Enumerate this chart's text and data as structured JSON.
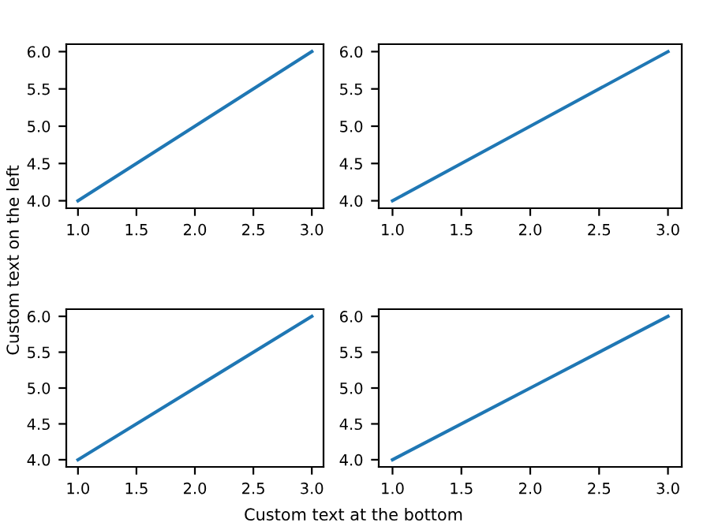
{
  "chart_data": [
    {
      "type": "line",
      "x": [
        1,
        2,
        3
      ],
      "series": [
        {
          "color": "#1f77b4",
          "values": [
            4,
            5,
            6
          ]
        }
      ],
      "xlim": [
        0.9,
        3.1
      ],
      "ylim": [
        3.9,
        6.1
      ],
      "xticks": [
        {
          "value": 1,
          "label": "1.0"
        },
        {
          "value": 1.5,
          "label": "1.5"
        },
        {
          "value": 2,
          "label": "2.0"
        },
        {
          "value": 2.5,
          "label": "2.5"
        },
        {
          "value": 3,
          "label": "3.0"
        }
      ],
      "yticks": [
        {
          "value": 4,
          "label": "4.0"
        },
        {
          "value": 4.5,
          "label": "4.5"
        },
        {
          "value": 5,
          "label": "5.0"
        },
        {
          "value": 5.5,
          "label": "5.5"
        },
        {
          "value": 6,
          "label": "6.0"
        }
      ]
    },
    {
      "type": "line",
      "x": [
        1,
        2,
        3
      ],
      "series": [
        {
          "color": "#1f77b4",
          "values": [
            4,
            5,
            6
          ]
        }
      ],
      "xlim": [
        0.9,
        3.1
      ],
      "ylim": [
        3.9,
        6.1
      ],
      "xticks": [
        {
          "value": 1,
          "label": "1.0"
        },
        {
          "value": 1.5,
          "label": "1.5"
        },
        {
          "value": 2,
          "label": "2.0"
        },
        {
          "value": 2.5,
          "label": "2.5"
        },
        {
          "value": 3,
          "label": "3.0"
        }
      ],
      "yticks": [
        {
          "value": 4,
          "label": "4.0"
        },
        {
          "value": 4.5,
          "label": "4.5"
        },
        {
          "value": 5,
          "label": "5.0"
        },
        {
          "value": 5.5,
          "label": "5.5"
        },
        {
          "value": 6,
          "label": "6.0"
        }
      ]
    },
    {
      "type": "line",
      "x": [
        1,
        2,
        3
      ],
      "series": [
        {
          "color": "#1f77b4",
          "values": [
            4,
            5,
            6
          ]
        }
      ],
      "xlim": [
        0.9,
        3.1
      ],
      "ylim": [
        3.9,
        6.1
      ],
      "xticks": [
        {
          "value": 1,
          "label": "1.0"
        },
        {
          "value": 1.5,
          "label": "1.5"
        },
        {
          "value": 2,
          "label": "2.0"
        },
        {
          "value": 2.5,
          "label": "2.5"
        },
        {
          "value": 3,
          "label": "3.0"
        }
      ],
      "yticks": [
        {
          "value": 4,
          "label": "4.0"
        },
        {
          "value": 4.5,
          "label": "4.5"
        },
        {
          "value": 5,
          "label": "5.0"
        },
        {
          "value": 5.5,
          "label": "5.5"
        },
        {
          "value": 6,
          "label": "6.0"
        }
      ],
      "annotations": [
        "Custom text on the left",
        "Custom text at the bottom"
      ]
    },
    {
      "type": "line",
      "x": [
        1,
        2,
        3
      ],
      "series": [
        {
          "color": "#1f77b4",
          "values": [
            4,
            5,
            6
          ]
        }
      ],
      "xlim": [
        0.9,
        3.1
      ],
      "ylim": [
        3.9,
        6.1
      ],
      "xticks": [
        {
          "value": 1,
          "label": "1.0"
        },
        {
          "value": 1.5,
          "label": "1.5"
        },
        {
          "value": 2,
          "label": "2.0"
        },
        {
          "value": 2.5,
          "label": "2.5"
        },
        {
          "value": 3,
          "label": "3.0"
        }
      ],
      "yticks": [
        {
          "value": 4,
          "label": "4.0"
        },
        {
          "value": 4.5,
          "label": "4.5"
        },
        {
          "value": 5,
          "label": "5.0"
        },
        {
          "value": 5.5,
          "label": "5.5"
        },
        {
          "value": 6,
          "label": "6.0"
        }
      ]
    }
  ]
}
